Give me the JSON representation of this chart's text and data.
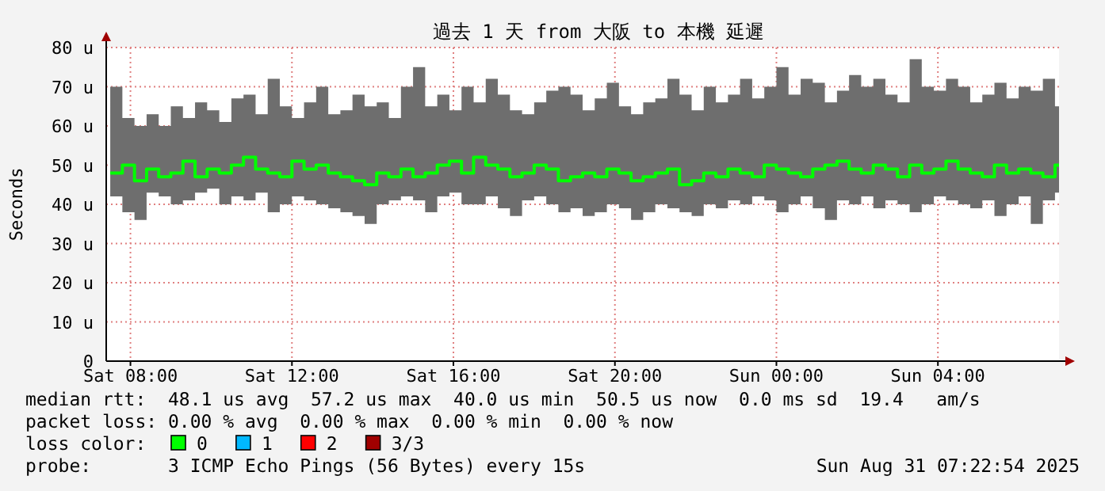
{
  "chart_data": {
    "type": "step",
    "title": "過去 1 天 from 大阪 to 本機 延遲",
    "ylabel": "Seconds",
    "x": [
      "2025-08-30T07:30",
      "2025-08-30T07:48",
      "2025-08-30T08:06",
      "2025-08-30T08:24",
      "2025-08-30T08:42",
      "2025-08-30T09:00",
      "2025-08-30T09:18",
      "2025-08-30T09:36",
      "2025-08-30T09:54",
      "2025-08-30T10:12",
      "2025-08-30T10:30",
      "2025-08-30T10:48",
      "2025-08-30T11:06",
      "2025-08-30T11:24",
      "2025-08-30T11:42",
      "2025-08-30T12:00",
      "2025-08-30T12:18",
      "2025-08-30T12:36",
      "2025-08-30T12:54",
      "2025-08-30T13:12",
      "2025-08-30T13:30",
      "2025-08-30T13:48",
      "2025-08-30T14:06",
      "2025-08-30T14:24",
      "2025-08-30T14:42",
      "2025-08-30T15:00",
      "2025-08-30T15:18",
      "2025-08-30T15:36",
      "2025-08-30T15:54",
      "2025-08-30T16:12",
      "2025-08-30T16:30",
      "2025-08-30T16:48",
      "2025-08-30T17:06",
      "2025-08-30T17:24",
      "2025-08-30T17:42",
      "2025-08-30T18:00",
      "2025-08-30T18:18",
      "2025-08-30T18:36",
      "2025-08-30T18:54",
      "2025-08-30T19:12",
      "2025-08-30T19:30",
      "2025-08-30T19:48",
      "2025-08-30T20:06",
      "2025-08-30T20:24",
      "2025-08-30T20:42",
      "2025-08-30T21:00",
      "2025-08-30T21:18",
      "2025-08-30T21:36",
      "2025-08-30T21:54",
      "2025-08-30T22:12",
      "2025-08-30T22:30",
      "2025-08-30T22:48",
      "2025-08-30T23:06",
      "2025-08-30T23:24",
      "2025-08-30T23:42",
      "2025-08-31T00:00",
      "2025-08-31T00:18",
      "2025-08-31T00:36",
      "2025-08-31T00:54",
      "2025-08-31T01:12",
      "2025-08-31T01:30",
      "2025-08-31T01:48",
      "2025-08-31T02:06",
      "2025-08-31T02:24",
      "2025-08-31T02:42",
      "2025-08-31T03:00",
      "2025-08-31T03:18",
      "2025-08-31T03:36",
      "2025-08-31T03:54",
      "2025-08-31T04:12",
      "2025-08-31T04:30",
      "2025-08-31T04:48",
      "2025-08-31T05:06",
      "2025-08-31T05:24",
      "2025-08-31T05:42",
      "2025-08-31T06:00",
      "2025-08-31T06:18",
      "2025-08-31T06:36",
      "2025-08-31T06:54"
    ],
    "series": [
      {
        "name": "0",
        "color": "#00ff00",
        "values": [
          48,
          50,
          46,
          49,
          47,
          48,
          51,
          47,
          49,
          48,
          50,
          52,
          49,
          48,
          47,
          51,
          49,
          50,
          48,
          47,
          46,
          45,
          48,
          47,
          49,
          47,
          48,
          50,
          51,
          48,
          52,
          50,
          49,
          47,
          48,
          50,
          49,
          46,
          47,
          48,
          47,
          49,
          48,
          46,
          47,
          48,
          49,
          45,
          46,
          48,
          47,
          49,
          48,
          47,
          50,
          49,
          48,
          47,
          49,
          50,
          51,
          49,
          48,
          50,
          49,
          47,
          50,
          48,
          49,
          51,
          49,
          48,
          47,
          50,
          48,
          49,
          48,
          47,
          50
        ],
        "lower": [
          42,
          38,
          36,
          43,
          42,
          40,
          41,
          43,
          44,
          40,
          42,
          41,
          43,
          38,
          40,
          42,
          41,
          40,
          39,
          38,
          37,
          35,
          40,
          41,
          42,
          41,
          38,
          42,
          43,
          40,
          40,
          42,
          39,
          37,
          41,
          42,
          40,
          38,
          39,
          37,
          38,
          40,
          39,
          36,
          38,
          40,
          39,
          38,
          37,
          40,
          39,
          41,
          40,
          42,
          41,
          38,
          40,
          42,
          39,
          36,
          41,
          40,
          42,
          39,
          41,
          40,
          38,
          40,
          42,
          41,
          40,
          39,
          41,
          37,
          40,
          42,
          35,
          41,
          43
        ],
        "upper": [
          70,
          62,
          60,
          63,
          60,
          65,
          62,
          66,
          64,
          61,
          67,
          68,
          63,
          72,
          65,
          62,
          66,
          70,
          63,
          64,
          68,
          65,
          66,
          62,
          70,
          75,
          65,
          68,
          64,
          70,
          66,
          72,
          68,
          64,
          63,
          66,
          69,
          70,
          68,
          64,
          67,
          71,
          65,
          63,
          66,
          67,
          72,
          68,
          64,
          70,
          66,
          68,
          72,
          67,
          70,
          75,
          68,
          72,
          71,
          66,
          69,
          73,
          70,
          72,
          68,
          66,
          77,
          70,
          69,
          72,
          70,
          66,
          68,
          71,
          67,
          70,
          69,
          72,
          65
        ]
      },
      {
        "name": "1",
        "color": "#00b8ff",
        "values": [
          null,
          null,
          null,
          null,
          null,
          null,
          null,
          null,
          null,
          null,
          null,
          null,
          null,
          null,
          null,
          null,
          null,
          null,
          null,
          null,
          null,
          null,
          null,
          null,
          null,
          null,
          null,
          null,
          null,
          null,
          null,
          null,
          null,
          null,
          null,
          null,
          null,
          null,
          null,
          null,
          null,
          null,
          null,
          null,
          null,
          null,
          null,
          null,
          null,
          null,
          null,
          null,
          null,
          null,
          null,
          null,
          null,
          null,
          null,
          null,
          null,
          null,
          null,
          null,
          null,
          null,
          null,
          null,
          null,
          null,
          null,
          null,
          null,
          null,
          null,
          null,
          null,
          null,
          null
        ]
      },
      {
        "name": "2",
        "color": "#ff0000",
        "values": [
          null,
          null,
          null,
          null,
          null,
          null,
          null,
          null,
          null,
          null,
          null,
          null,
          null,
          null,
          null,
          null,
          null,
          null,
          null,
          null,
          null,
          null,
          null,
          null,
          null,
          null,
          null,
          null,
          null,
          null,
          null,
          null,
          null,
          null,
          null,
          null,
          null,
          null,
          null,
          null,
          null,
          null,
          null,
          null,
          null,
          null,
          null,
          null,
          null,
          null,
          null,
          null,
          null,
          null,
          null,
          null,
          null,
          null,
          null,
          null,
          null,
          null,
          null,
          null,
          null,
          null,
          null,
          null,
          null,
          null,
          null,
          null,
          null,
          null,
          null,
          null,
          null,
          null,
          null
        ]
      },
      {
        "name": "3/3",
        "color": "#a00000",
        "values": [
          null,
          null,
          null,
          null,
          null,
          null,
          null,
          null,
          null,
          null,
          null,
          null,
          null,
          null,
          null,
          null,
          null,
          null,
          null,
          null,
          null,
          null,
          null,
          null,
          null,
          null,
          null,
          null,
          null,
          null,
          null,
          null,
          null,
          null,
          null,
          null,
          null,
          null,
          null,
          null,
          null,
          null,
          null,
          null,
          null,
          null,
          null,
          null,
          null,
          null,
          null,
          null,
          null,
          null,
          null,
          null,
          null,
          null,
          null,
          null,
          null,
          null,
          null,
          null,
          null,
          null,
          null,
          null,
          null,
          null,
          null,
          null,
          null,
          null,
          null,
          null,
          null,
          null,
          null
        ]
      }
    ],
    "legend_title": "loss color:",
    "legend": "bottom",
    "grid": true,
    "xlim": [
      "2025-08-30T07:24",
      "2025-08-31T07:00"
    ],
    "xticks": [
      {
        "value": "2025-08-30T08:00",
        "label": "Sat 08:00"
      },
      {
        "value": "2025-08-30T12:00",
        "label": "Sat 12:00"
      },
      {
        "value": "2025-08-30T16:00",
        "label": "Sat 16:00"
      },
      {
        "value": "2025-08-30T20:00",
        "label": "Sat 20:00"
      },
      {
        "value": "2025-08-31T00:00",
        "label": "Sun 00:00"
      },
      {
        "value": "2025-08-31T04:00",
        "label": "Sun 04:00"
      }
    ],
    "ylim": [
      0,
      80
    ],
    "yticks": [
      0,
      {
        "value": 10,
        "label": "10 u"
      },
      {
        "value": 20,
        "label": "20 u"
      },
      {
        "value": 30,
        "label": "30 u"
      },
      {
        "value": 40,
        "label": "40 u"
      },
      {
        "value": 50,
        "label": "50 u"
      },
      {
        "value": 60,
        "label": "60 u"
      },
      {
        "value": 70,
        "label": "70 u"
      },
      {
        "value": 80,
        "label": "80 u"
      }
    ],
    "annotations": [
      "median rtt:  48.1 us avg  57.2 us max  40.0 us min  50.5 us now  0.0 ms sd  19.4   am/s",
      "packet loss: 0.00 % avg  0.00 % max  0.00 % min  0.00 % now",
      "probe:       3 ICMP Echo Pings (56 Bytes) every 15s",
      "Sun Aug 31 07:22:54 2025"
    ]
  }
}
